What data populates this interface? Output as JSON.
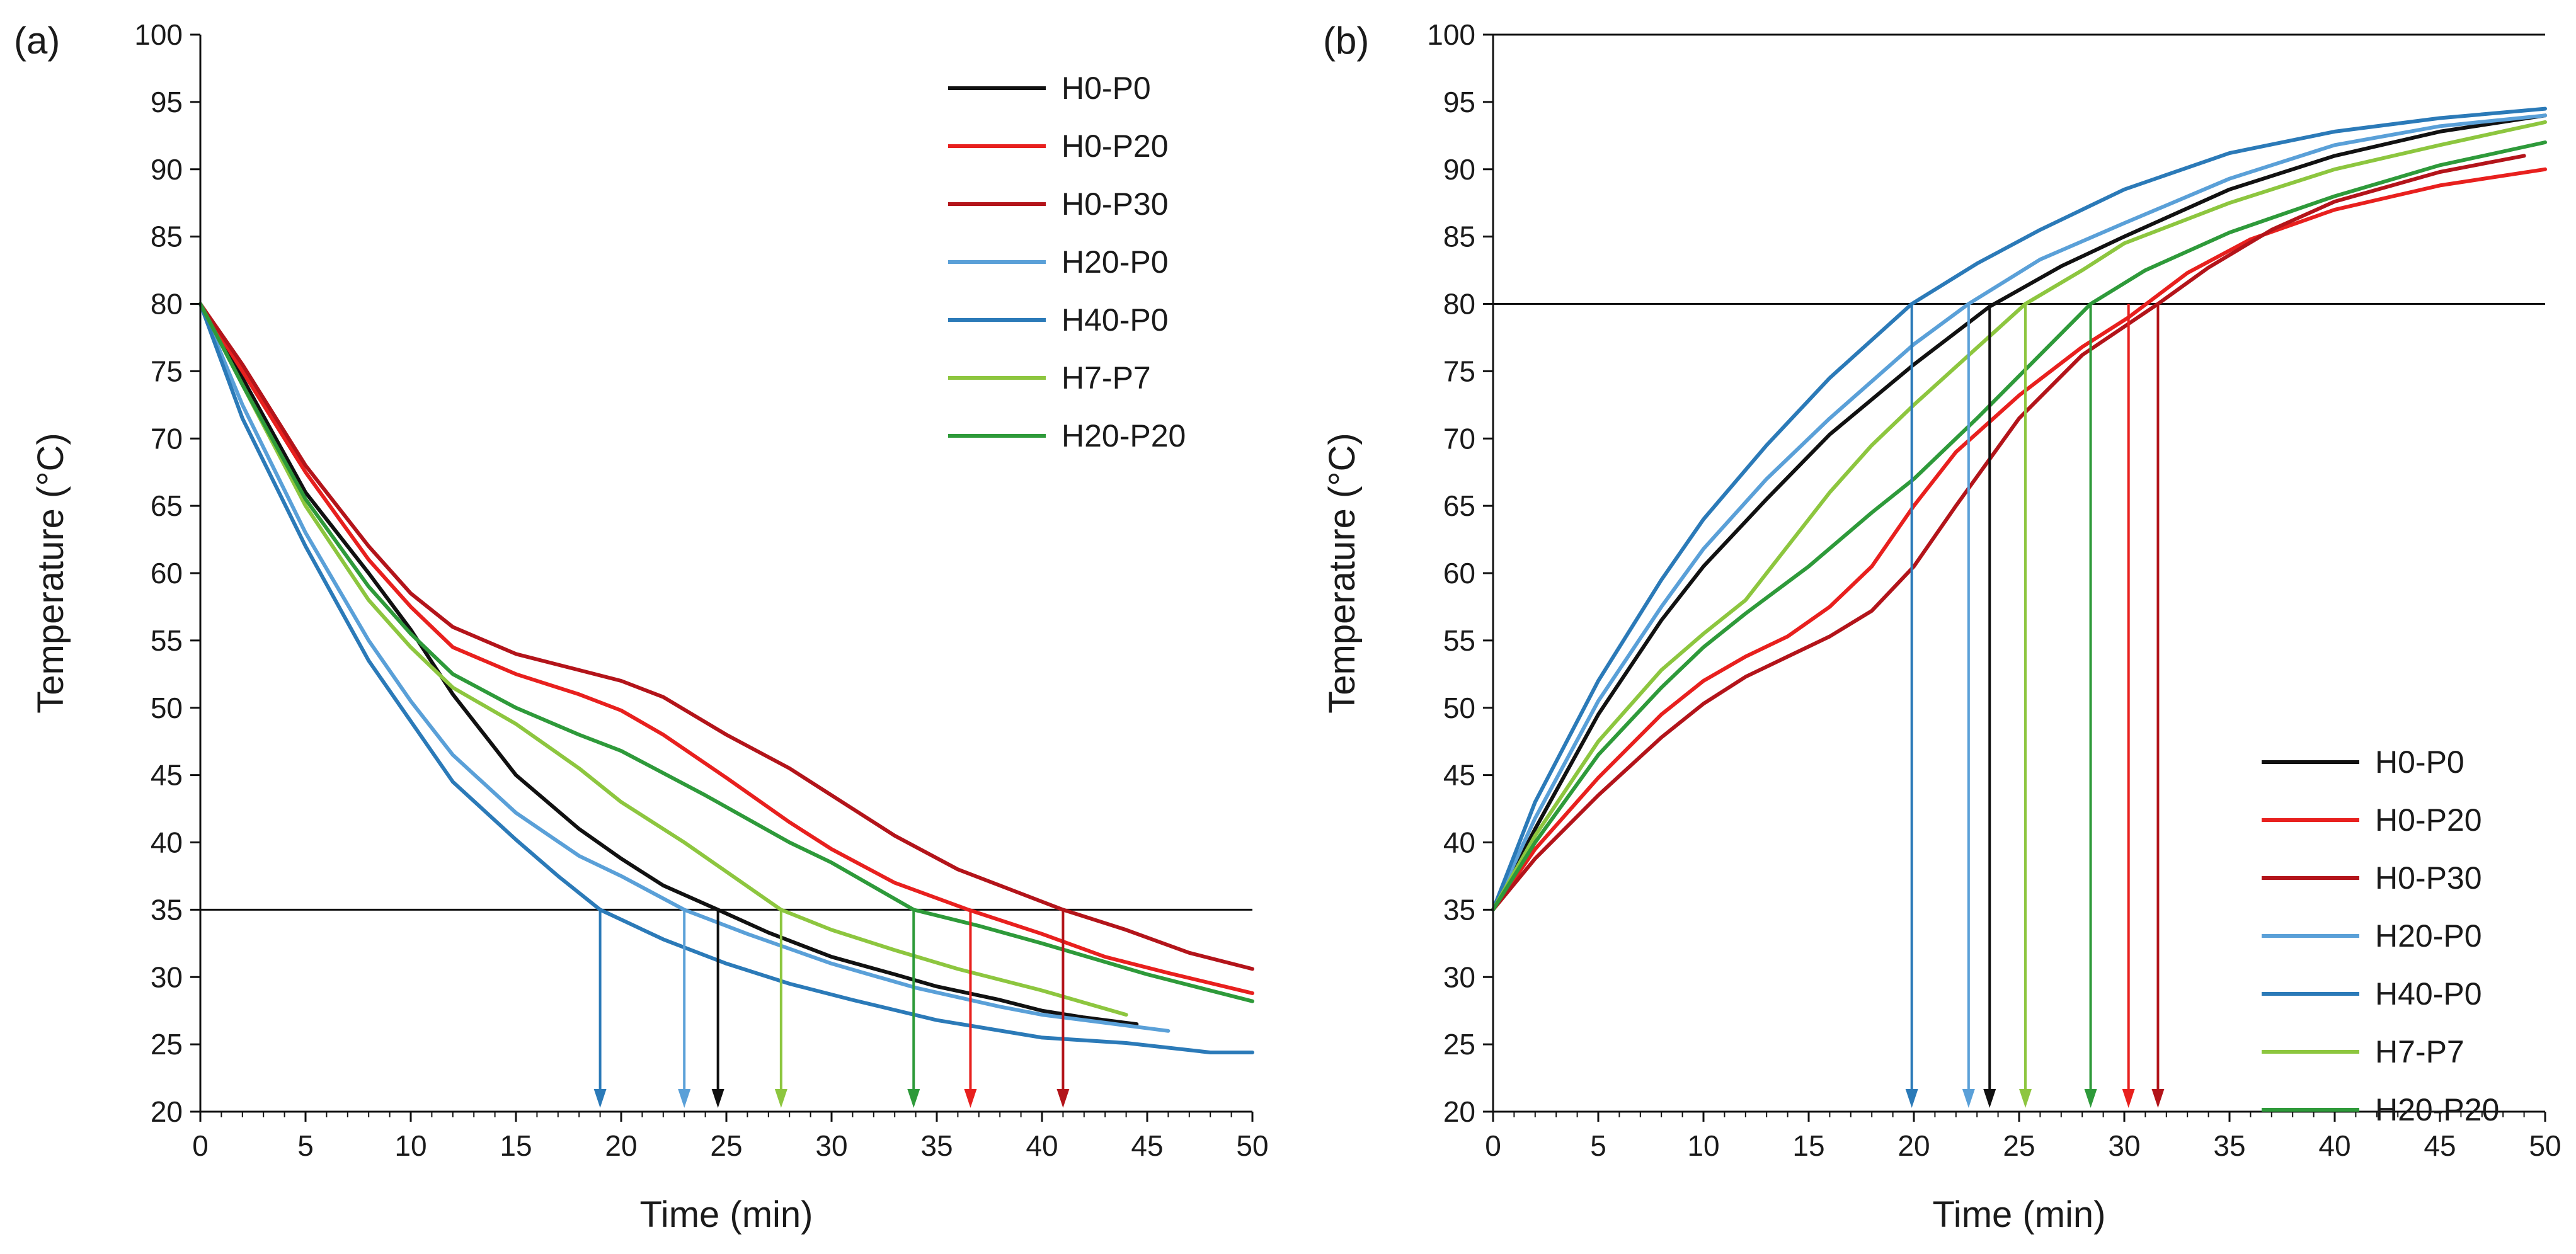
{
  "chart_data": [
    {
      "panel_label": "(a)",
      "type": "line",
      "xlabel": "Time (min)",
      "ylabel": "Temperature (°C)",
      "xlim": [
        0,
        50
      ],
      "ylim": [
        20,
        100
      ],
      "xticks": [
        "0",
        "5",
        "10",
        "15",
        "20",
        "25",
        "30",
        "35",
        "40",
        "45",
        "50"
      ],
      "yticks": [
        "20",
        "25",
        "30",
        "35",
        "40",
        "45",
        "50",
        "55",
        "60",
        "65",
        "70",
        "75",
        "80",
        "85",
        "90",
        "95",
        "100"
      ],
      "reference_line": 35,
      "legend_position": "top-right",
      "series": [
        {
          "name": "H0-P0",
          "color": "#111111",
          "x": [
            0,
            2,
            5,
            8,
            10,
            12,
            15,
            18,
            20,
            22,
            24.6,
            27,
            30,
            33,
            35,
            38,
            40,
            42,
            44.5
          ],
          "y": [
            80,
            74.5,
            66,
            60,
            55.8,
            51,
            45,
            41,
            38.8,
            36.8,
            35,
            33.3,
            31.5,
            30.2,
            29.3,
            28.3,
            27.5,
            27,
            26.5
          ]
        },
        {
          "name": "H0-P20",
          "color": "#e8201e",
          "x": [
            0,
            2,
            5,
            8,
            10,
            12,
            15,
            18,
            20,
            22,
            25,
            28,
            30,
            33,
            36.5,
            40,
            43,
            46,
            50
          ],
          "y": [
            80,
            75,
            67.5,
            61,
            57.5,
            54.5,
            52.5,
            51,
            49.8,
            48,
            44.8,
            41.5,
            39.5,
            37,
            35,
            33.2,
            31.5,
            30.3,
            28.8
          ]
        },
        {
          "name": "H0-P30",
          "color": "#b3141a",
          "x": [
            0,
            2,
            5,
            8,
            10,
            12,
            15,
            18,
            20,
            22,
            25,
            28,
            30,
            33,
            36,
            41,
            44,
            47,
            50
          ],
          "y": [
            80,
            75.5,
            68,
            62,
            58.5,
            56,
            54,
            52.8,
            52,
            50.8,
            48,
            45.5,
            43.5,
            40.5,
            38,
            35,
            33.5,
            31.8,
            30.6
          ]
        },
        {
          "name": "H20-P0",
          "color": "#5aa0d8",
          "x": [
            0,
            2,
            5,
            8,
            10,
            12,
            15,
            18,
            20,
            23,
            26,
            30,
            34,
            38,
            40,
            43,
            46
          ],
          "y": [
            80,
            72.5,
            63,
            55,
            50.5,
            46.5,
            42.2,
            39,
            37.5,
            35,
            33.2,
            31,
            29.2,
            27.8,
            27.2,
            26.6,
            26
          ]
        },
        {
          "name": "H40-P0",
          "color": "#2b7ab8",
          "x": [
            0,
            2,
            5,
            8,
            10,
            12,
            15,
            17,
            19,
            22,
            25,
            28,
            31,
            35,
            40,
            44,
            48,
            50
          ],
          "y": [
            80,
            71.5,
            62,
            53.5,
            49,
            44.5,
            40.2,
            37.5,
            35,
            32.8,
            31,
            29.5,
            28.3,
            26.8,
            25.5,
            25.1,
            24.4,
            24.4
          ]
        },
        {
          "name": "H7-P7",
          "color": "#8dc63f",
          "x": [
            0,
            2,
            5,
            8,
            10,
            12,
            15,
            18,
            20,
            23,
            27.6,
            30,
            33,
            36,
            40,
            44
          ],
          "y": [
            80,
            74,
            65,
            58,
            54.5,
            51.5,
            48.8,
            45.5,
            43,
            40,
            35,
            33.5,
            32,
            30.6,
            29,
            27.2
          ]
        },
        {
          "name": "H20-P20",
          "color": "#2e9a3a",
          "x": [
            0,
            2,
            5,
            8,
            10,
            12,
            15,
            18,
            20,
            24,
            28,
            30,
            33.9,
            37,
            40,
            45,
            50
          ],
          "y": [
            80,
            74,
            65.5,
            59,
            55.5,
            52.5,
            50,
            48,
            46.8,
            43.5,
            40,
            38.5,
            35,
            33.8,
            32.5,
            30.2,
            28.2
          ]
        }
      ],
      "arrows": [
        {
          "x": 19,
          "color": "#2b7ab8"
        },
        {
          "x": 23,
          "color": "#5aa0d8"
        },
        {
          "x": 24.6,
          "color": "#111111"
        },
        {
          "x": 27.6,
          "color": "#8dc63f"
        },
        {
          "x": 33.9,
          "color": "#2e9a3a"
        },
        {
          "x": 36.6,
          "color": "#e8201e"
        },
        {
          "x": 41,
          "color": "#b3141a"
        }
      ]
    },
    {
      "panel_label": "(b)",
      "type": "line",
      "xlabel": "Time (min)",
      "ylabel": "Temperature (°C)",
      "xlim": [
        0,
        50
      ],
      "ylim": [
        20,
        100
      ],
      "xticks": [
        "0",
        "5",
        "10",
        "15",
        "20",
        "25",
        "30",
        "35",
        "40",
        "45",
        "50"
      ],
      "yticks": [
        "20",
        "25",
        "30",
        "35",
        "40",
        "45",
        "50",
        "55",
        "60",
        "65",
        "70",
        "75",
        "80",
        "85",
        "90",
        "95",
        "100"
      ],
      "reference_line": 80,
      "legend_position": "bottom-right",
      "series": [
        {
          "name": "H0-P0",
          "color": "#111111",
          "x": [
            0,
            2,
            5,
            8,
            10,
            13,
            16,
            20,
            23.6,
            27,
            30,
            35,
            40,
            45,
            50
          ],
          "y": [
            35,
            41,
            49.5,
            56.5,
            60.5,
            65.5,
            70.3,
            75.5,
            79.8,
            82.8,
            85,
            88.5,
            91,
            92.8,
            94
          ]
        },
        {
          "name": "H0-P20",
          "color": "#e8201e",
          "x": [
            0,
            2,
            5,
            8,
            10,
            12,
            14,
            16,
            18,
            20,
            22,
            25,
            28,
            30.2,
            33,
            36,
            40,
            45,
            50
          ],
          "y": [
            35,
            39.5,
            44.8,
            49.5,
            52,
            53.8,
            55.3,
            57.5,
            60.5,
            65,
            69,
            73.2,
            76.8,
            79,
            82.3,
            84.8,
            87,
            88.8,
            90
          ]
        },
        {
          "name": "H0-P30",
          "color": "#b3141a",
          "x": [
            0,
            2,
            5,
            8,
            10,
            12,
            14,
            16,
            18,
            20,
            22,
            25,
            28,
            31.6,
            34,
            37,
            40,
            45,
            49
          ],
          "y": [
            35,
            38.8,
            43.5,
            47.8,
            50.3,
            52.3,
            53.8,
            55.3,
            57.2,
            60.5,
            65,
            71.5,
            76.2,
            80,
            82.7,
            85.5,
            87.6,
            89.8,
            91
          ]
        },
        {
          "name": "H20-P0",
          "color": "#5aa0d8",
          "x": [
            0,
            2,
            5,
            8,
            10,
            13,
            16,
            20,
            22.6,
            26,
            30,
            35,
            40,
            45,
            50
          ],
          "y": [
            35,
            41.8,
            50.5,
            57.5,
            61.8,
            67,
            71.5,
            77,
            80,
            83.3,
            86,
            89.3,
            91.8,
            93.2,
            94
          ]
        },
        {
          "name": "H40-P0",
          "color": "#2b7ab8",
          "x": [
            0,
            2,
            5,
            8,
            10,
            13,
            16,
            19.9,
            23,
            26,
            30,
            35,
            40,
            45,
            50
          ],
          "y": [
            35,
            43,
            52,
            59.5,
            64,
            69.5,
            74.5,
            80,
            83,
            85.5,
            88.5,
            91.2,
            92.8,
            93.8,
            94.5
          ]
        },
        {
          "name": "H7-P7",
          "color": "#8dc63f",
          "x": [
            0,
            2,
            5,
            8,
            10,
            12,
            14,
            16,
            18,
            20,
            25.3,
            28,
            30,
            35,
            40,
            45,
            50
          ],
          "y": [
            35,
            40.5,
            47.5,
            52.8,
            55.5,
            58,
            62,
            66,
            69.5,
            72.5,
            80,
            82.5,
            84.5,
            87.5,
            90,
            91.8,
            93.5
          ]
        },
        {
          "name": "H20-P20",
          "color": "#2e9a3a",
          "x": [
            0,
            2,
            5,
            8,
            10,
            12,
            15,
            18,
            20,
            23,
            28.4,
            31,
            35,
            40,
            45,
            50
          ],
          "y": [
            35,
            40,
            46.5,
            51.5,
            54.5,
            57,
            60.5,
            64.5,
            67,
            71.5,
            80,
            82.5,
            85.3,
            88,
            90.3,
            92
          ]
        }
      ],
      "arrows": [
        {
          "x": 19.9,
          "color": "#2b7ab8"
        },
        {
          "x": 22.6,
          "color": "#5aa0d8"
        },
        {
          "x": 23.6,
          "color": "#111111"
        },
        {
          "x": 25.3,
          "color": "#8dc63f"
        },
        {
          "x": 28.4,
          "color": "#2e9a3a"
        },
        {
          "x": 30.2,
          "color": "#e8201e"
        },
        {
          "x": 31.6,
          "color": "#b3141a"
        }
      ]
    }
  ]
}
